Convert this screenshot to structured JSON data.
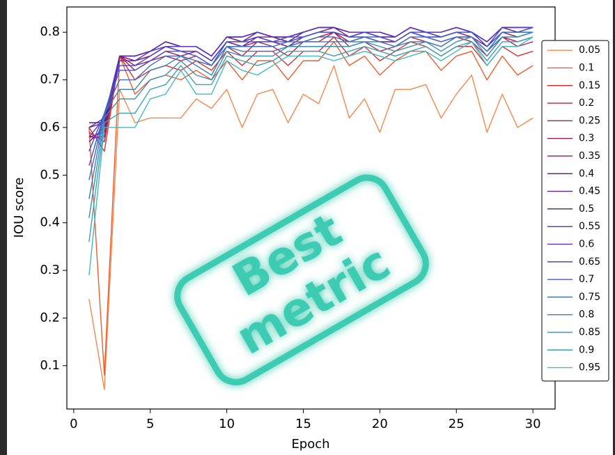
{
  "chart_data": {
    "type": "line",
    "xlabel": "Epoch",
    "ylabel": "IOU score",
    "annotations": [
      "Best",
      "metric"
    ],
    "x": [
      1,
      2,
      3,
      4,
      5,
      6,
      7,
      8,
      9,
      10,
      11,
      12,
      13,
      14,
      15,
      16,
      17,
      18,
      19,
      20,
      21,
      22,
      23,
      24,
      25,
      26,
      27,
      28,
      29,
      30
    ],
    "xlim": [
      -0.45,
      31.45
    ],
    "xticks": [
      0,
      5,
      10,
      15,
      20,
      25,
      30
    ],
    "ylim": [
      0.009,
      0.853
    ],
    "yticks": [
      0.1,
      0.2,
      0.3,
      0.4,
      0.5,
      0.6,
      0.7,
      0.8
    ],
    "grid": false,
    "legend": "right",
    "series": [
      {
        "name": "0.05",
        "color": "#f4884e",
        "values": [
          0.24,
          0.05,
          0.68,
          0.61,
          0.62,
          0.62,
          0.62,
          0.66,
          0.64,
          0.68,
          0.6,
          0.67,
          0.68,
          0.61,
          0.67,
          0.65,
          0.73,
          0.62,
          0.66,
          0.59,
          0.68,
          0.68,
          0.69,
          0.62,
          0.67,
          0.71,
          0.59,
          0.67,
          0.6,
          0.62
        ]
      },
      {
        "name": "0.1",
        "color": "#ef5b2a",
        "values": [
          0.6,
          0.08,
          0.75,
          0.67,
          0.7,
          0.71,
          0.7,
          0.72,
          0.7,
          0.74,
          0.7,
          0.74,
          0.74,
          0.7,
          0.74,
          0.74,
          0.78,
          0.73,
          0.75,
          0.71,
          0.74,
          0.76,
          0.76,
          0.72,
          0.75,
          0.76,
          0.7,
          0.75,
          0.71,
          0.73
        ]
      },
      {
        "name": "0.15",
        "color": "#d8322e",
        "values": [
          0.6,
          0.55,
          0.75,
          0.7,
          0.72,
          0.73,
          0.72,
          0.74,
          0.72,
          0.76,
          0.73,
          0.76,
          0.76,
          0.73,
          0.76,
          0.76,
          0.79,
          0.75,
          0.77,
          0.74,
          0.76,
          0.78,
          0.77,
          0.75,
          0.77,
          0.77,
          0.73,
          0.77,
          0.75,
          0.76
        ]
      },
      {
        "name": "0.2",
        "color": "#bb2146",
        "values": [
          0.59,
          0.57,
          0.75,
          0.72,
          0.74,
          0.75,
          0.74,
          0.75,
          0.73,
          0.77,
          0.75,
          0.78,
          0.77,
          0.75,
          0.78,
          0.78,
          0.8,
          0.77,
          0.78,
          0.76,
          0.77,
          0.79,
          0.78,
          0.77,
          0.79,
          0.78,
          0.75,
          0.79,
          0.77,
          0.78
        ]
      },
      {
        "name": "0.25",
        "color": "#a31d58",
        "values": [
          0.58,
          0.58,
          0.75,
          0.73,
          0.74,
          0.76,
          0.75,
          0.76,
          0.74,
          0.78,
          0.77,
          0.78,
          0.78,
          0.77,
          0.78,
          0.79,
          0.8,
          0.78,
          0.79,
          0.78,
          0.78,
          0.8,
          0.79,
          0.78,
          0.79,
          0.79,
          0.76,
          0.79,
          0.78,
          0.79
        ]
      },
      {
        "name": "0.3",
        "color": "#8e1b68",
        "values": [
          0.58,
          0.59,
          0.75,
          0.74,
          0.75,
          0.77,
          0.76,
          0.76,
          0.74,
          0.78,
          0.77,
          0.79,
          0.78,
          0.77,
          0.79,
          0.8,
          0.8,
          0.79,
          0.79,
          0.78,
          0.78,
          0.8,
          0.79,
          0.79,
          0.8,
          0.79,
          0.77,
          0.8,
          0.79,
          0.8
        ]
      },
      {
        "name": "0.35",
        "color": "#7e1b73",
        "values": [
          0.57,
          0.6,
          0.75,
          0.74,
          0.75,
          0.77,
          0.77,
          0.77,
          0.75,
          0.79,
          0.78,
          0.79,
          0.79,
          0.78,
          0.79,
          0.8,
          0.81,
          0.79,
          0.8,
          0.79,
          0.79,
          0.81,
          0.8,
          0.79,
          0.8,
          0.8,
          0.77,
          0.8,
          0.8,
          0.8
        ]
      },
      {
        "name": "0.4",
        "color": "#6d1f7e",
        "values": [
          0.57,
          0.6,
          0.75,
          0.75,
          0.76,
          0.78,
          0.77,
          0.77,
          0.75,
          0.79,
          0.78,
          0.8,
          0.79,
          0.78,
          0.8,
          0.81,
          0.81,
          0.8,
          0.8,
          0.79,
          0.79,
          0.81,
          0.8,
          0.8,
          0.81,
          0.8,
          0.78,
          0.81,
          0.8,
          0.81
        ]
      },
      {
        "name": "0.45",
        "color": "#5e2286",
        "values": [
          0.6,
          0.61,
          0.75,
          0.75,
          0.76,
          0.78,
          0.77,
          0.77,
          0.75,
          0.79,
          0.79,
          0.8,
          0.79,
          0.79,
          0.8,
          0.81,
          0.81,
          0.8,
          0.8,
          0.8,
          0.79,
          0.81,
          0.8,
          0.8,
          0.81,
          0.8,
          0.78,
          0.81,
          0.81,
          0.81
        ]
      },
      {
        "name": "0.5",
        "color": "#4a1b78",
        "values": [
          0.61,
          0.61,
          0.75,
          0.75,
          0.76,
          0.78,
          0.77,
          0.77,
          0.75,
          0.79,
          0.79,
          0.8,
          0.79,
          0.79,
          0.8,
          0.81,
          0.81,
          0.8,
          0.8,
          0.8,
          0.79,
          0.81,
          0.8,
          0.8,
          0.81,
          0.8,
          0.78,
          0.81,
          0.81,
          0.81
        ]
      },
      {
        "name": "0.55",
        "color": "#5a2ea8",
        "values": [
          0.6,
          0.62,
          0.75,
          0.75,
          0.76,
          0.78,
          0.77,
          0.77,
          0.75,
          0.79,
          0.79,
          0.8,
          0.79,
          0.79,
          0.8,
          0.81,
          0.81,
          0.8,
          0.8,
          0.8,
          0.79,
          0.81,
          0.8,
          0.8,
          0.81,
          0.8,
          0.78,
          0.81,
          0.81,
          0.81
        ]
      },
      {
        "name": "0.6",
        "color": "#5a34c6",
        "values": [
          0.58,
          0.62,
          0.74,
          0.74,
          0.76,
          0.77,
          0.77,
          0.77,
          0.75,
          0.79,
          0.79,
          0.8,
          0.79,
          0.79,
          0.8,
          0.81,
          0.81,
          0.8,
          0.8,
          0.8,
          0.79,
          0.81,
          0.8,
          0.8,
          0.81,
          0.8,
          0.78,
          0.81,
          0.81,
          0.81
        ]
      },
      {
        "name": "0.65",
        "color": "#4a42d2",
        "values": [
          0.55,
          0.63,
          0.73,
          0.73,
          0.75,
          0.77,
          0.76,
          0.76,
          0.74,
          0.78,
          0.78,
          0.79,
          0.78,
          0.79,
          0.79,
          0.8,
          0.8,
          0.79,
          0.8,
          0.79,
          0.78,
          0.8,
          0.8,
          0.79,
          0.8,
          0.8,
          0.77,
          0.81,
          0.81,
          0.81
        ]
      },
      {
        "name": "0.7",
        "color": "#3e56d4",
        "values": [
          0.52,
          0.63,
          0.72,
          0.72,
          0.74,
          0.76,
          0.76,
          0.75,
          0.73,
          0.78,
          0.78,
          0.78,
          0.78,
          0.78,
          0.79,
          0.8,
          0.8,
          0.79,
          0.79,
          0.79,
          0.78,
          0.8,
          0.79,
          0.79,
          0.8,
          0.8,
          0.77,
          0.8,
          0.8,
          0.81
        ]
      },
      {
        "name": "0.75",
        "color": "#396bc9",
        "values": [
          0.49,
          0.63,
          0.7,
          0.7,
          0.73,
          0.75,
          0.75,
          0.74,
          0.73,
          0.77,
          0.77,
          0.77,
          0.77,
          0.78,
          0.78,
          0.79,
          0.79,
          0.78,
          0.79,
          0.78,
          0.77,
          0.79,
          0.79,
          0.78,
          0.79,
          0.79,
          0.76,
          0.8,
          0.8,
          0.8
        ]
      },
      {
        "name": "0.8",
        "color": "#397cbf",
        "values": [
          0.45,
          0.63,
          0.68,
          0.68,
          0.72,
          0.73,
          0.75,
          0.73,
          0.71,
          0.77,
          0.76,
          0.76,
          0.76,
          0.77,
          0.78,
          0.78,
          0.78,
          0.78,
          0.78,
          0.78,
          0.77,
          0.78,
          0.78,
          0.77,
          0.79,
          0.79,
          0.76,
          0.79,
          0.79,
          0.8
        ]
      },
      {
        "name": "0.85",
        "color": "#398eb8",
        "values": [
          0.41,
          0.62,
          0.66,
          0.66,
          0.7,
          0.71,
          0.74,
          0.71,
          0.7,
          0.76,
          0.75,
          0.75,
          0.75,
          0.77,
          0.77,
          0.77,
          0.77,
          0.77,
          0.78,
          0.77,
          0.76,
          0.77,
          0.78,
          0.76,
          0.78,
          0.79,
          0.75,
          0.79,
          0.79,
          0.8
        ]
      },
      {
        "name": "0.9",
        "color": "#39a2b8",
        "values": [
          0.36,
          0.61,
          0.63,
          0.63,
          0.68,
          0.69,
          0.73,
          0.69,
          0.69,
          0.75,
          0.74,
          0.73,
          0.74,
          0.76,
          0.76,
          0.76,
          0.75,
          0.76,
          0.77,
          0.76,
          0.75,
          0.76,
          0.77,
          0.75,
          0.77,
          0.78,
          0.74,
          0.78,
          0.78,
          0.79
        ]
      },
      {
        "name": "0.95",
        "color": "#42b9c2",
        "values": [
          0.29,
          0.6,
          0.6,
          0.6,
          0.66,
          0.67,
          0.72,
          0.67,
          0.67,
          0.74,
          0.72,
          0.71,
          0.73,
          0.75,
          0.75,
          0.75,
          0.74,
          0.75,
          0.76,
          0.75,
          0.74,
          0.75,
          0.76,
          0.74,
          0.76,
          0.78,
          0.73,
          0.77,
          0.77,
          0.79
        ]
      }
    ]
  }
}
